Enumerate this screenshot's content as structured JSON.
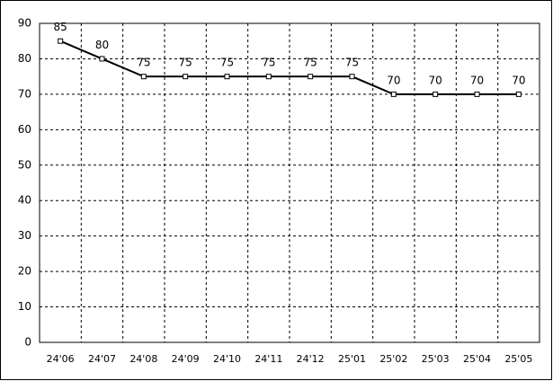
{
  "chart_data": {
    "type": "line",
    "categories": [
      "24'06",
      "24'07",
      "24'08",
      "24'09",
      "24'10",
      "24'11",
      "24'12",
      "25'01",
      "25'02",
      "25'03",
      "25'04",
      "25'05"
    ],
    "series": [
      {
        "color": "#000000",
        "values": [
          85,
          80,
          75,
          75,
          75,
          75,
          75,
          75,
          70,
          70,
          70,
          70
        ]
      }
    ],
    "ylim": [
      0,
      90
    ],
    "yticks": [
      0,
      10,
      20,
      30,
      40,
      50,
      60,
      70,
      80,
      90
    ],
    "grid": true
  }
}
